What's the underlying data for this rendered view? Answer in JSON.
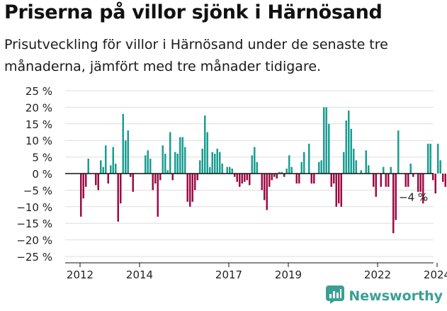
{
  "header": {
    "title": "Priserna på villor sjönk i Härnösand",
    "subtitle": "Prisutveckling för villor i Härnösand under de senaste tre månaderna, jämfört med tre månader tidigare."
  },
  "brand": {
    "name": "Newsworthy",
    "icon": "newsworthy-logo-icon"
  },
  "colors": {
    "positive": "#1a9e91",
    "negative": "#9c0c45",
    "axis": "#111111",
    "grid": "#dddddd",
    "brand": "#3aa093"
  },
  "chart_data": {
    "type": "bar",
    "ylim": [
      -25,
      25
    ],
    "yticks": [
      25,
      20,
      15,
      10,
      5,
      0,
      -5,
      -10,
      -15,
      -20,
      -25
    ],
    "ytick_labels": [
      "25 %",
      "20 %",
      "15 %",
      "10 %",
      "5 %",
      "0 %",
      "−5 %",
      "−10 %",
      "−15 %",
      "−20 %",
      "−25 %"
    ],
    "xtick_labels": [
      "2012",
      "2014",
      "2017",
      "2019",
      "2022",
      "2024"
    ],
    "xtick_index": [
      0,
      24,
      60,
      84,
      120,
      144
    ],
    "start": "2012-01",
    "values": [
      -13,
      -7.5,
      -4,
      4.5,
      0,
      0,
      -3.5,
      -5,
      4,
      2,
      8.5,
      -3,
      2.5,
      8,
      3,
      -14.5,
      -9,
      18,
      10,
      13,
      -1,
      -5.5,
      0,
      0,
      0,
      0,
      5.5,
      7,
      4.5,
      -5,
      -3,
      -13,
      -2,
      8.5,
      6,
      1,
      12.5,
      -2,
      6.5,
      6,
      11,
      11,
      8,
      -8.5,
      -10,
      -8.5,
      -5,
      -2,
      4,
      7.5,
      17.5,
      12.5,
      2,
      6.5,
      6,
      7.5,
      6.5,
      3,
      0,
      2,
      2,
      1.5,
      -1,
      -2.5,
      -4,
      -3,
      -2.5,
      -2,
      -3.5,
      5.5,
      8,
      3.5,
      0,
      -5,
      -8,
      -11,
      -4,
      -2,
      -1,
      -1.5,
      0.5,
      0.5,
      -1,
      1.5,
      5.5,
      2,
      0,
      -3,
      -3,
      3.5,
      6.5,
      0,
      9,
      -3,
      -3,
      0,
      3.5,
      4,
      20,
      20,
      15,
      -4,
      -3,
      -10,
      -9,
      -10,
      6.5,
      16,
      19,
      13.5,
      7.5,
      4,
      0,
      1,
      0,
      7,
      2.5,
      0,
      -4,
      -7,
      0,
      -4,
      2,
      -4,
      -4,
      2,
      -18,
      -14,
      13,
      0,
      0,
      -4,
      -4,
      3,
      -1,
      0,
      -5.5,
      -5.5,
      -9,
      0,
      9,
      9,
      -2,
      -6,
      9,
      4,
      -2.5,
      -4
    ],
    "annotation": "−4 %"
  }
}
